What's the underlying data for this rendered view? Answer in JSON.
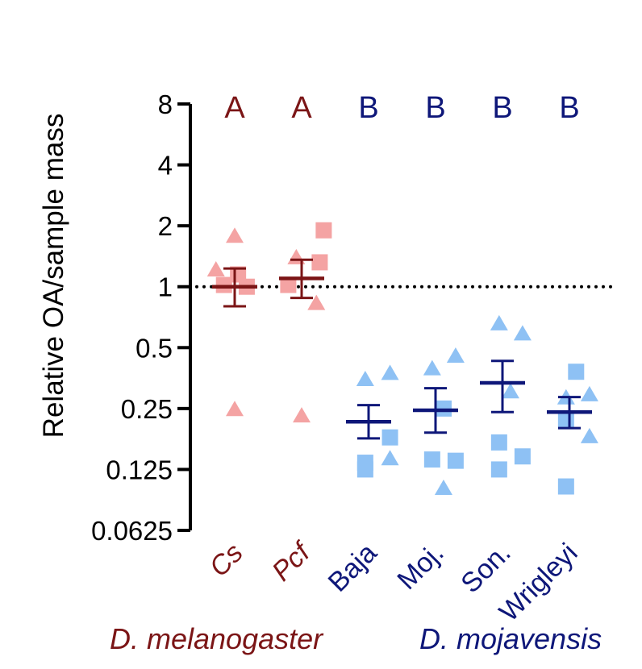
{
  "colors": {
    "melanogaster_dark": "#7b1516",
    "melanogaster_light": "#f4a3a3",
    "mojavensis_dark": "#0e1779",
    "mojavensis_light": "#8ec1f4",
    "axis": "#000000"
  },
  "chart_data": {
    "type": "scatter",
    "scale": "log2",
    "ylabel": "Relative OA/sample mass",
    "ylim": [
      0.0625,
      8
    ],
    "yticks": [
      {
        "value": 8,
        "label": "8"
      },
      {
        "value": 4,
        "label": "4"
      },
      {
        "value": 2,
        "label": "2"
      },
      {
        "value": 1,
        "label": "1"
      },
      {
        "value": 0.5,
        "label": "0.5"
      },
      {
        "value": 0.25,
        "label": "0.25"
      },
      {
        "value": 0.125,
        "label": "0.125"
      },
      {
        "value": 0.0625,
        "label": "0.0625"
      }
    ],
    "reference_line": {
      "value": 1,
      "style": "dotted"
    },
    "groups": [
      {
        "name": "Cs",
        "species": "melanogaster",
        "letter": "A",
        "mean": 1.0,
        "sem_low": 0.8,
        "sem_high": 1.23,
        "points": [
          {
            "shape": "triangle",
            "value": 1.76,
            "offset": 0.0
          },
          {
            "shape": "triangle",
            "value": 1.2,
            "offset": -0.28
          },
          {
            "shape": "square",
            "value": 1.02,
            "offset": -0.16
          },
          {
            "shape": "square",
            "value": 1.0,
            "offset": 0.18
          },
          {
            "shape": "square",
            "value": 1.15,
            "offset": 0.05
          },
          {
            "shape": "triangle",
            "value": 0.245,
            "offset": 0.0
          }
        ]
      },
      {
        "name": "Pcf",
        "species": "melanogaster",
        "letter": "A",
        "mean": 1.1,
        "sem_low": 0.88,
        "sem_high": 1.36,
        "points": [
          {
            "shape": "square",
            "value": 1.9,
            "offset": 0.33
          },
          {
            "shape": "triangle",
            "value": 1.38,
            "offset": -0.08
          },
          {
            "shape": "square",
            "value": 1.32,
            "offset": 0.27
          },
          {
            "shape": "square",
            "value": 1.02,
            "offset": -0.2
          },
          {
            "shape": "triangle",
            "value": 0.82,
            "offset": 0.22
          },
          {
            "shape": "triangle",
            "value": 0.228,
            "offset": 0.0
          }
        ]
      },
      {
        "name": "Baja",
        "species": "mojavensis",
        "letter": "B",
        "mean": 0.215,
        "sem_low": 0.178,
        "sem_high": 0.26,
        "points": [
          {
            "shape": "triangle",
            "value": 0.345,
            "offset": -0.05
          },
          {
            "shape": "triangle",
            "value": 0.37,
            "offset": 0.32
          },
          {
            "shape": "square",
            "value": 0.18,
            "offset": 0.32
          },
          {
            "shape": "square",
            "value": 0.135,
            "offset": -0.05
          },
          {
            "shape": "square",
            "value": 0.125,
            "offset": -0.05
          },
          {
            "shape": "triangle",
            "value": 0.14,
            "offset": 0.32
          }
        ]
      },
      {
        "name": "Moj.",
        "species": "mojavensis",
        "letter": "B",
        "mean": 0.245,
        "sem_low": 0.19,
        "sem_high": 0.315,
        "points": [
          {
            "shape": "triangle",
            "value": 0.39,
            "offset": -0.05
          },
          {
            "shape": "triangle",
            "value": 0.45,
            "offset": 0.3
          },
          {
            "shape": "square",
            "value": 0.25,
            "offset": 0.12
          },
          {
            "shape": "square",
            "value": 0.14,
            "offset": -0.05
          },
          {
            "shape": "square",
            "value": 0.138,
            "offset": 0.3
          },
          {
            "shape": "triangle",
            "value": 0.1,
            "offset": 0.12
          }
        ]
      },
      {
        "name": "Son.",
        "species": "mojavensis",
        "letter": "B",
        "mean": 0.335,
        "sem_low": 0.24,
        "sem_high": 0.43,
        "points": [
          {
            "shape": "triangle",
            "value": 0.65,
            "offset": -0.05
          },
          {
            "shape": "triangle",
            "value": 0.58,
            "offset": 0.3
          },
          {
            "shape": "triangle",
            "value": 0.3,
            "offset": 0.12
          },
          {
            "shape": "square",
            "value": 0.17,
            "offset": -0.05
          },
          {
            "shape": "square",
            "value": 0.145,
            "offset": 0.3
          },
          {
            "shape": "square",
            "value": 0.125,
            "offset": -0.05
          }
        ]
      },
      {
        "name": "Wrigleyi",
        "species": "mojavensis",
        "letter": "B",
        "mean": 0.24,
        "sem_low": 0.2,
        "sem_high": 0.285,
        "points": [
          {
            "shape": "square",
            "value": 0.38,
            "offset": 0.1
          },
          {
            "shape": "triangle",
            "value": 0.28,
            "offset": -0.05
          },
          {
            "shape": "triangle",
            "value": 0.29,
            "offset": 0.3
          },
          {
            "shape": "square",
            "value": 0.22,
            "offset": -0.05
          },
          {
            "shape": "triangle",
            "value": 0.18,
            "offset": 0.3
          },
          {
            "shape": "square",
            "value": 0.103,
            "offset": -0.05
          }
        ]
      }
    ],
    "species_labels": [
      {
        "key": "melanogaster",
        "label": "D. melanogaster"
      },
      {
        "key": "mojavensis",
        "label": "D. mojavensis"
      }
    ]
  }
}
